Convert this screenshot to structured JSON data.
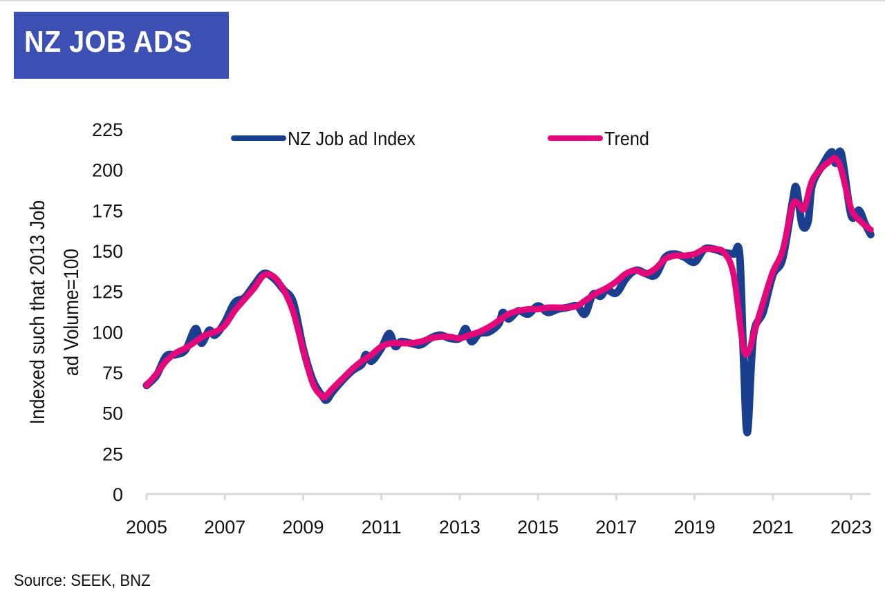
{
  "header": {
    "title": "NZ JOB ADS",
    "title_bg": "#3c50b4"
  },
  "footer": {
    "source": "Source: SEEK, BNZ"
  },
  "chart_data": {
    "type": "line",
    "title": "NZ JOB ADS",
    "xlabel": "",
    "ylabel": "Indexed such that 2013 Job ad Volume=100",
    "ylabel_lines": [
      "Indexed such that 2013 Job",
      "ad Volume=100"
    ],
    "xlim": [
      2005,
      2023.5
    ],
    "ylim": [
      0,
      225
    ],
    "yticks": [
      0,
      25,
      50,
      75,
      100,
      125,
      150,
      175,
      200,
      225
    ],
    "xticks": [
      2005,
      2007,
      2009,
      2011,
      2013,
      2015,
      2017,
      2019,
      2021,
      2023
    ],
    "grid": false,
    "legend_position": "top",
    "series": [
      {
        "name": "NZ Job ad Index",
        "color": "#1a3f8f",
        "x": [
          2005.0,
          2005.25,
          2005.5,
          2005.75,
          2006.0,
          2006.25,
          2006.4,
          2006.6,
          2006.75,
          2007.0,
          2007.25,
          2007.5,
          2007.75,
          2008.0,
          2008.25,
          2008.5,
          2008.75,
          2009.0,
          2009.25,
          2009.5,
          2009.6,
          2009.75,
          2010.0,
          2010.25,
          2010.5,
          2010.6,
          2010.75,
          2011.0,
          2011.2,
          2011.35,
          2011.5,
          2011.75,
          2012.0,
          2012.25,
          2012.5,
          2012.75,
          2013.0,
          2013.15,
          2013.3,
          2013.5,
          2013.75,
          2014.0,
          2014.1,
          2014.25,
          2014.5,
          2014.75,
          2015.0,
          2015.25,
          2015.5,
          2015.75,
          2016.0,
          2016.2,
          2016.4,
          2016.6,
          2016.75,
          2017.0,
          2017.25,
          2017.5,
          2017.75,
          2018.0,
          2018.25,
          2018.5,
          2018.75,
          2019.0,
          2019.25,
          2019.5,
          2019.75,
          2020.0,
          2020.15,
          2020.25,
          2020.35,
          2020.5,
          2020.75,
          2021.0,
          2021.25,
          2021.5,
          2021.6,
          2021.75,
          2021.9,
          2022.0,
          2022.25,
          2022.5,
          2022.6,
          2022.75,
          2023.0,
          2023.2,
          2023.35,
          2023.5
        ],
        "values": [
          67,
          73,
          85,
          86,
          89,
          102,
          93,
          101,
          98,
          106,
          118,
          121,
          129,
          136,
          133,
          126,
          118,
          90,
          70,
          60,
          58,
          63,
          70,
          76,
          80,
          86,
          82,
          90,
          99,
          91,
          94,
          93,
          92,
          96,
          98,
          96,
          96,
          102,
          94,
          99,
          100,
          105,
          112,
          108,
          113,
          111,
          116,
          112,
          114,
          115,
          116,
          111,
          123,
          122,
          126,
          124,
          133,
          138,
          136,
          135,
          146,
          148,
          146,
          143,
          151,
          151,
          149,
          148,
          148,
          85,
          38,
          97,
          112,
          135,
          145,
          180,
          189,
          166,
          168,
          190,
          202,
          211,
          204,
          210,
          172,
          175,
          167,
          160
        ]
      },
      {
        "name": "Trend",
        "color": "#e4097a",
        "x": [
          2005.0,
          2005.25,
          2005.5,
          2005.75,
          2006.0,
          2006.25,
          2006.5,
          2006.75,
          2007.0,
          2007.25,
          2007.5,
          2007.75,
          2008.0,
          2008.25,
          2008.5,
          2008.75,
          2009.0,
          2009.25,
          2009.5,
          2009.6,
          2009.75,
          2010.0,
          2010.25,
          2010.5,
          2010.75,
          2011.0,
          2011.25,
          2011.5,
          2011.75,
          2012.0,
          2012.25,
          2012.5,
          2012.75,
          2013.0,
          2013.25,
          2013.5,
          2013.75,
          2014.0,
          2014.25,
          2014.5,
          2014.75,
          2015.0,
          2015.25,
          2015.5,
          2015.75,
          2016.0,
          2016.25,
          2016.5,
          2016.75,
          2017.0,
          2017.25,
          2017.5,
          2017.75,
          2018.0,
          2018.25,
          2018.5,
          2018.75,
          2019.0,
          2019.25,
          2019.5,
          2019.75,
          2020.0,
          2020.25,
          2020.4,
          2020.5,
          2020.75,
          2021.0,
          2021.25,
          2021.5,
          2021.65,
          2021.8,
          2022.0,
          2022.25,
          2022.5,
          2022.6,
          2022.75,
          2023.0,
          2023.25,
          2023.5
        ],
        "values": [
          67,
          74,
          82,
          87,
          90,
          94,
          98,
          100,
          104,
          113,
          120,
          127,
          135,
          134,
          126,
          112,
          89,
          68,
          60,
          61,
          65,
          71,
          77,
          82,
          86,
          91,
          93,
          93,
          93,
          94,
          96,
          97,
          97,
          96,
          98,
          100,
          103,
          107,
          111,
          113,
          114,
          114,
          115,
          115,
          115,
          116,
          120,
          124,
          127,
          131,
          136,
          138,
          136,
          139,
          145,
          147,
          147,
          148,
          151,
          151,
          149,
          135,
          90,
          89,
          98,
          118,
          137,
          150,
          178,
          179,
          176,
          193,
          201,
          206,
          207,
          200,
          176,
          168,
          163
        ]
      }
    ]
  }
}
